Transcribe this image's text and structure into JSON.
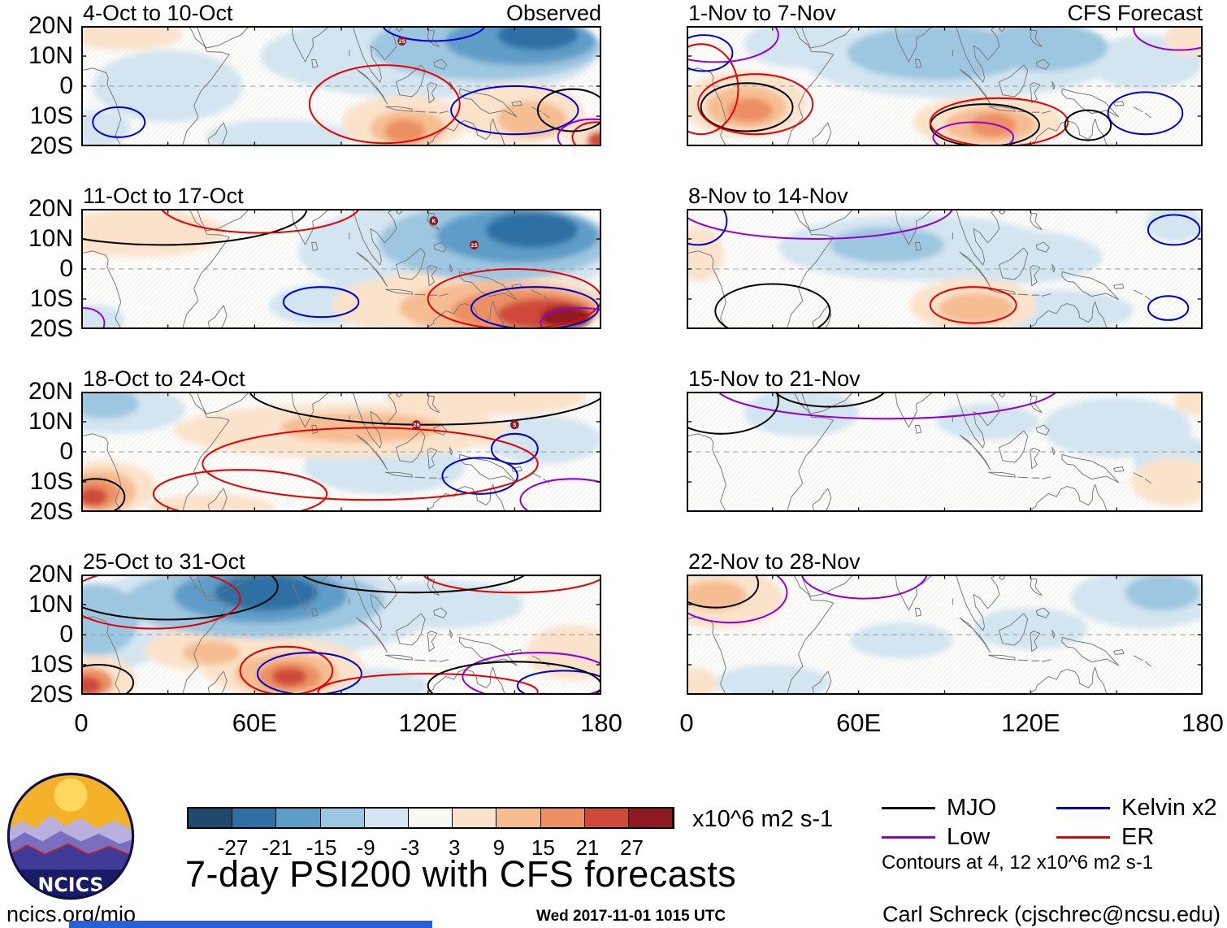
{
  "page": {
    "footer_left": "ncics.org/mjo",
    "footer_center": "Wed 2017-11-01 1015 UTC",
    "footer_right": "Carl Schreck (cjschrec@ncsu.edu)",
    "logo_text": "NCICS"
  },
  "chart_data": {
    "type": "heatmap",
    "title": "7-day PSI200 with CFS forecasts",
    "columns": [
      "Observed",
      "CFS Forecast"
    ],
    "x_axis": {
      "ticks": [
        "0",
        "60E",
        "120E",
        "180"
      ],
      "range_deg": [
        0,
        180
      ]
    },
    "y_axis": {
      "ticks": [
        "20N",
        "10N",
        "0",
        "10S",
        "20S"
      ],
      "range_deg": [
        20,
        -20
      ]
    },
    "colorbar": {
      "units": "x10^6 m2 s-1",
      "tick_labels": [
        "-27",
        "-21",
        "-15",
        "-9",
        "-3",
        "3",
        "9",
        "15",
        "21",
        "27"
      ],
      "colors": [
        "#20496b",
        "#2f6fa3",
        "#5e9dc8",
        "#9dc6e0",
        "#d3e5f0",
        "#f8f8f6",
        "#fbe3cb",
        "#f6bd92",
        "#ec8f62",
        "#cf4a3a",
        "#8e1b22"
      ]
    },
    "contour_note": "Contours at 4, 12 x10^6 m2 s-1",
    "wave_legend": [
      {
        "key": "mjo",
        "label": "MJO",
        "color": "#000000"
      },
      {
        "key": "kelvin",
        "label": "Kelvin x2",
        "color": "#0000cc"
      },
      {
        "key": "low",
        "label": "Low",
        "color": "#9400d3"
      },
      {
        "key": "er",
        "label": "ER",
        "color": "#e60000"
      }
    ],
    "panels": [
      {
        "row": 0,
        "col": 0,
        "title": "4-Oct to 10-Oct",
        "blobs": [
          [
            -1,
            120,
            10,
            58,
            14
          ],
          [
            -1,
            30,
            0,
            26,
            12
          ],
          [
            -1,
            5,
            -14,
            12,
            6
          ],
          [
            -1,
            68,
            -17,
            25,
            6
          ],
          [
            1,
            15,
            17,
            20,
            5
          ],
          [
            1,
            112,
            -12,
            22,
            9
          ],
          [
            1,
            152,
            -9,
            22,
            10
          ],
          [
            1,
            178,
            -16,
            10,
            6
          ],
          [
            -2,
            140,
            13,
            40,
            11
          ],
          [
            2,
            113,
            -14,
            13,
            6
          ],
          [
            2,
            156,
            -11,
            12,
            6
          ],
          [
            -3,
            152,
            15,
            26,
            8
          ],
          [
            3,
            112,
            -15,
            7,
            4
          ],
          [
            -4,
            158,
            17,
            14,
            5
          ],
          [
            4,
            179,
            -18,
            4,
            3
          ]
        ],
        "contours": [
          [
            "kelvin",
            13,
            -12,
            9,
            5
          ],
          [
            "kelvin",
            150,
            -8,
            22,
            8
          ],
          [
            "kelvin",
            122,
            21,
            18,
            6
          ],
          [
            "er",
            105,
            -6,
            26,
            13
          ],
          [
            "er",
            178,
            -17,
            8,
            5
          ],
          [
            "mjo",
            170,
            -8,
            12,
            7
          ],
          [
            "low",
            177,
            -17,
            12,
            6
          ]
        ],
        "markers": [
          [
            "25",
            111,
            15
          ]
        ]
      },
      {
        "row": 1,
        "col": 0,
        "title": "11-Oct to 17-Oct",
        "blobs": [
          [
            -1,
            130,
            6,
            55,
            17
          ],
          [
            -2,
            143,
            9,
            40,
            13
          ],
          [
            -3,
            151,
            11,
            28,
            9
          ],
          [
            -4,
            156,
            13,
            16,
            6
          ],
          [
            -1,
            5,
            -17,
            10,
            5
          ],
          [
            -1,
            85,
            -12,
            20,
            7
          ],
          [
            1,
            20,
            12,
            30,
            8
          ],
          [
            1,
            135,
            -12,
            48,
            12
          ],
          [
            2,
            145,
            -13,
            35,
            9
          ],
          [
            3,
            153,
            -14,
            25,
            7
          ],
          [
            4,
            160,
            -15,
            16,
            5
          ],
          [
            5,
            168,
            -16,
            9,
            4
          ]
        ],
        "contours": [
          [
            "mjo",
            28,
            20,
            50,
            12
          ],
          [
            "er",
            62,
            22,
            35,
            10
          ],
          [
            "kelvin",
            83,
            -11,
            13,
            5
          ],
          [
            "er",
            150,
            -10,
            30,
            10
          ],
          [
            "kelvin",
            157,
            -13,
            22,
            7
          ],
          [
            "low",
            173,
            -18,
            14,
            5
          ],
          [
            "low",
            1,
            -18,
            7,
            5
          ]
        ],
        "markers": [
          [
            "K",
            122,
            16
          ],
          [
            "25",
            136,
            8
          ]
        ]
      },
      {
        "row": 2,
        "col": 0,
        "title": "18-Oct to 24-Oct",
        "blobs": [
          [
            -1,
            12,
            14,
            24,
            8
          ],
          [
            -2,
            8,
            16,
            12,
            5
          ],
          [
            -1,
            105,
            -5,
            28,
            9
          ],
          [
            -1,
            160,
            4,
            20,
            8
          ],
          [
            1,
            90,
            7,
            58,
            9
          ],
          [
            2,
            97,
            8,
            28,
            5
          ],
          [
            1,
            140,
            18,
            35,
            6
          ],
          [
            1,
            8,
            -12,
            18,
            9
          ],
          [
            2,
            7,
            -13,
            12,
            7
          ],
          [
            3,
            5,
            -14,
            8,
            5
          ],
          [
            4,
            4,
            -15,
            5,
            3
          ],
          [
            1,
            45,
            -19,
            22,
            5
          ]
        ],
        "contours": [
          [
            "mjo",
            120,
            21,
            62,
            12
          ],
          [
            "mjo",
            5,
            -15,
            10,
            6
          ],
          [
            "kelvin",
            150,
            1,
            8,
            5
          ],
          [
            "kelvin",
            138,
            -8,
            13,
            6
          ],
          [
            "er",
            100,
            -4,
            58,
            12
          ],
          [
            "er",
            55,
            -14,
            30,
            8
          ],
          [
            "low",
            170,
            -16,
            18,
            7
          ]
        ],
        "markers": [
          [
            "26",
            116,
            9
          ],
          [
            "S",
            150,
            9
          ]
        ]
      },
      {
        "row": 3,
        "col": 0,
        "title": "25-Oct to 31-Oct",
        "blobs": [
          [
            -1,
            60,
            8,
            62,
            16
          ],
          [
            -2,
            60,
            11,
            45,
            12
          ],
          [
            -3,
            62,
            13,
            30,
            9
          ],
          [
            -4,
            64,
            14,
            18,
            6
          ],
          [
            -2,
            5,
            5,
            15,
            12
          ],
          [
            -1,
            8,
            -2,
            20,
            10
          ],
          [
            -1,
            125,
            10,
            28,
            8
          ],
          [
            -1,
            95,
            -17,
            25,
            6
          ],
          [
            1,
            70,
            -11,
            28,
            10
          ],
          [
            2,
            71,
            -13,
            18,
            7
          ],
          [
            3,
            72,
            -14,
            11,
            5
          ],
          [
            4,
            72,
            -14,
            6,
            3
          ],
          [
            1,
            5,
            -15,
            14,
            8
          ],
          [
            3,
            3,
            -16,
            8,
            5
          ],
          [
            4,
            2,
            -17,
            5,
            3
          ],
          [
            1,
            170,
            -6,
            16,
            9
          ],
          [
            1,
            42,
            -5,
            20,
            7
          ],
          [
            2,
            45,
            -6,
            10,
            4
          ]
        ],
        "contours": [
          [
            "mjo",
            30,
            16,
            38,
            11
          ],
          [
            "er",
            25,
            12,
            30,
            10
          ],
          [
            "mjo",
            6,
            -16,
            12,
            6
          ],
          [
            "er",
            71,
            -12,
            16,
            8
          ],
          [
            "kelvin",
            79,
            -13,
            18,
            7
          ],
          [
            "er",
            120,
            -19,
            38,
            6
          ],
          [
            "low",
            158,
            -14,
            26,
            8
          ],
          [
            "kelvin",
            167,
            -17,
            16,
            5
          ],
          [
            "mjo",
            150,
            -17,
            30,
            8
          ],
          [
            "er",
            150,
            21,
            32,
            7
          ],
          [
            "mjo",
            115,
            22,
            40,
            8
          ]
        ],
        "markers": []
      },
      {
        "row": 0,
        "col": 1,
        "title": "1-Nov to 7-Nov",
        "blobs": [
          [
            -1,
            95,
            9,
            55,
            13
          ],
          [
            -2,
            88,
            11,
            32,
            9
          ],
          [
            -2,
            125,
            13,
            22,
            8
          ],
          [
            -1,
            160,
            8,
            20,
            9
          ],
          [
            -1,
            40,
            14,
            20,
            8
          ],
          [
            1,
            20,
            -6,
            22,
            11
          ],
          [
            2,
            21,
            -7,
            14,
            7
          ],
          [
            3,
            22,
            -8,
            8,
            4
          ],
          [
            1,
            105,
            -12,
            26,
            9
          ],
          [
            2,
            106,
            -13,
            16,
            6
          ],
          [
            3,
            107,
            -13,
            8,
            4
          ],
          [
            1,
            176,
            16,
            9,
            6
          ]
        ],
        "contours": [
          [
            "low",
            10,
            17,
            22,
            9
          ],
          [
            "low",
            172,
            19,
            16,
            7
          ],
          [
            "kelvin",
            6,
            11,
            10,
            6
          ],
          [
            "er",
            5,
            -1,
            13,
            15
          ],
          [
            "mjo",
            21,
            -7,
            16,
            8
          ],
          [
            "er",
            24,
            -6,
            20,
            10
          ],
          [
            "mjo",
            104,
            -13,
            19,
            7
          ],
          [
            "er",
            109,
            -12,
            24,
            8
          ],
          [
            "low",
            100,
            -17,
            14,
            5
          ],
          [
            "mjo",
            140,
            -13,
            8,
            5
          ],
          [
            "kelvin",
            160,
            -9,
            13,
            7
          ]
        ],
        "markers": []
      },
      {
        "row": 1,
        "col": 1,
        "title": "8-Nov to 14-Nov",
        "blobs": [
          [
            -1,
            80,
            7,
            48,
            11
          ],
          [
            -1,
            115,
            4,
            30,
            9
          ],
          [
            -2,
            70,
            8,
            20,
            6
          ],
          [
            -1,
            130,
            -14,
            26,
            7
          ],
          [
            -1,
            170,
            15,
            10,
            6
          ],
          [
            1,
            100,
            -12,
            22,
            9
          ],
          [
            2,
            101,
            -13,
            13,
            5
          ],
          [
            1,
            4,
            5,
            9,
            9
          ]
        ],
        "contours": [
          [
            "low",
            45,
            21,
            48,
            11
          ],
          [
            "kelvin",
            4,
            16,
            10,
            8
          ],
          [
            "mjo",
            30,
            -14,
            20,
            9
          ],
          [
            "er",
            100,
            -12,
            15,
            6
          ],
          [
            "kelvin",
            170,
            13,
            9,
            5
          ],
          [
            "kelvin",
            168,
            -13,
            7,
            4
          ]
        ],
        "markers": []
      },
      {
        "row": 2,
        "col": 1,
        "title": "15-Nov to 21-Nov",
        "blobs": [
          [
            -1,
            40,
            13,
            20,
            8
          ],
          [
            -1,
            150,
            8,
            26,
            10
          ],
          [
            -1,
            170,
            -3,
            14,
            9
          ],
          [
            -1,
            105,
            10,
            18,
            6
          ],
          [
            1,
            170,
            -10,
            15,
            8
          ],
          [
            1,
            177,
            17,
            7,
            5
          ]
        ],
        "contours": [
          [
            "low",
            70,
            22,
            60,
            11
          ],
          [
            "mjo",
            12,
            17,
            20,
            11
          ],
          [
            "mjo",
            50,
            22,
            20,
            7
          ]
        ],
        "markers": []
      },
      {
        "row": 3,
        "col": 1,
        "title": "22-Nov to 28-Nov",
        "blobs": [
          [
            -1,
            160,
            12,
            26,
            10
          ],
          [
            -2,
            166,
            14,
            13,
            6
          ],
          [
            -1,
            120,
            2,
            20,
            7
          ],
          [
            -1,
            75,
            -2,
            18,
            6
          ],
          [
            -1,
            30,
            -16,
            20,
            6
          ],
          [
            1,
            12,
            12,
            22,
            10
          ],
          [
            2,
            10,
            13,
            11,
            5
          ],
          [
            1,
            3,
            -16,
            8,
            5
          ]
        ],
        "contours": [
          [
            "low",
            15,
            14,
            20,
            10
          ],
          [
            "mjo",
            10,
            17,
            15,
            8
          ],
          [
            "low",
            62,
            21,
            22,
            9
          ]
        ],
        "markers": []
      }
    ]
  }
}
